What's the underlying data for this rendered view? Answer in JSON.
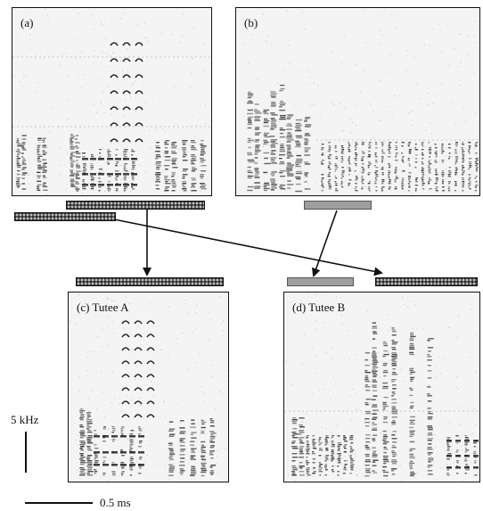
{
  "panels": {
    "a": {
      "label": "(a)"
    },
    "b": {
      "label": "(b)"
    },
    "c": {
      "label": "(c) Tutee A"
    },
    "d": {
      "label": "(d) Tutee B"
    }
  },
  "scale": {
    "freq_label": "5 kHz",
    "time_label": "0.5 ms"
  },
  "colors": {
    "ink": "#111111",
    "spectrogram_bg": "#f4f4f4",
    "segment_checker": "#2b2b2b",
    "segment_grey": "#9e9e9e"
  }
}
